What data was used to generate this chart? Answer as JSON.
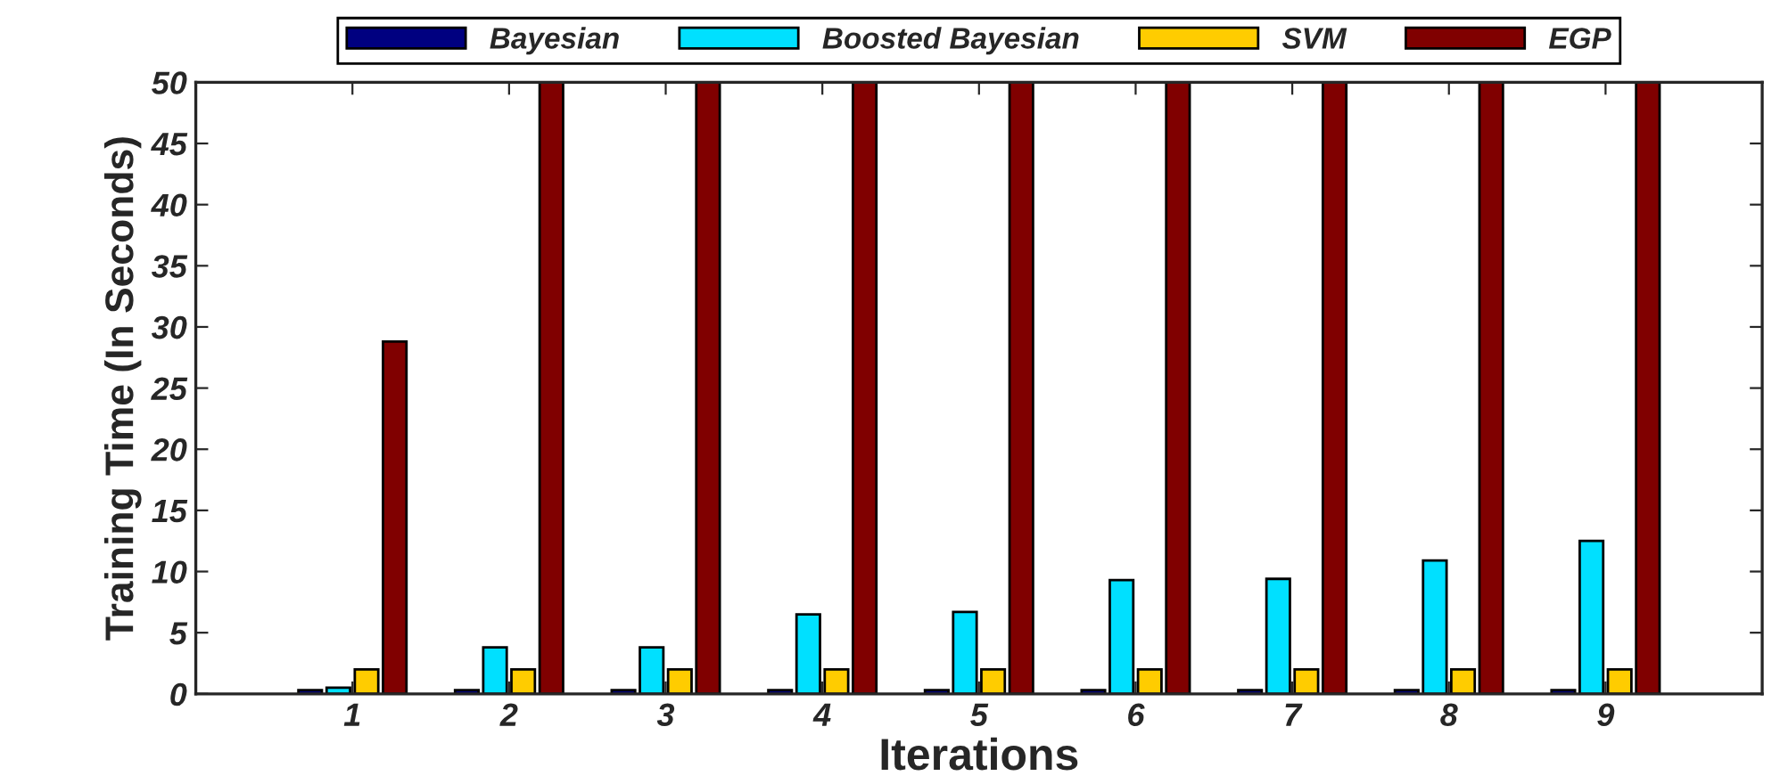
{
  "chart_data": {
    "type": "bar",
    "xlabel": "Iterations",
    "ylabel": "Training Time (In Seconds)",
    "categories": [
      "1",
      "2",
      "3",
      "4",
      "5",
      "6",
      "7",
      "8",
      "9"
    ],
    "series": [
      {
        "name": "Bayesian",
        "color": "#000080",
        "values": [
          0.3,
          0.3,
          0.3,
          0.3,
          0.3,
          0.3,
          0.3,
          0.3,
          0.3
        ]
      },
      {
        "name": "Boosted Bayesian",
        "color": "#00e0ff",
        "values": [
          0.5,
          3.8,
          3.8,
          6.5,
          6.7,
          9.3,
          9.4,
          10.9,
          12.5
        ]
      },
      {
        "name": "SVM",
        "color": "#ffcc00",
        "values": [
          2,
          2,
          2,
          2,
          2,
          2,
          2,
          2,
          2
        ]
      },
      {
        "name": "EGP",
        "color": "#800000",
        "values": [
          28.8,
          50,
          50,
          50,
          50,
          50,
          50,
          50,
          50
        ]
      }
    ],
    "ylim": [
      0,
      50
    ],
    "yticks": [
      0,
      5,
      10,
      15,
      20,
      25,
      30,
      35,
      40,
      45,
      50
    ],
    "grid": false,
    "legend": "top"
  }
}
